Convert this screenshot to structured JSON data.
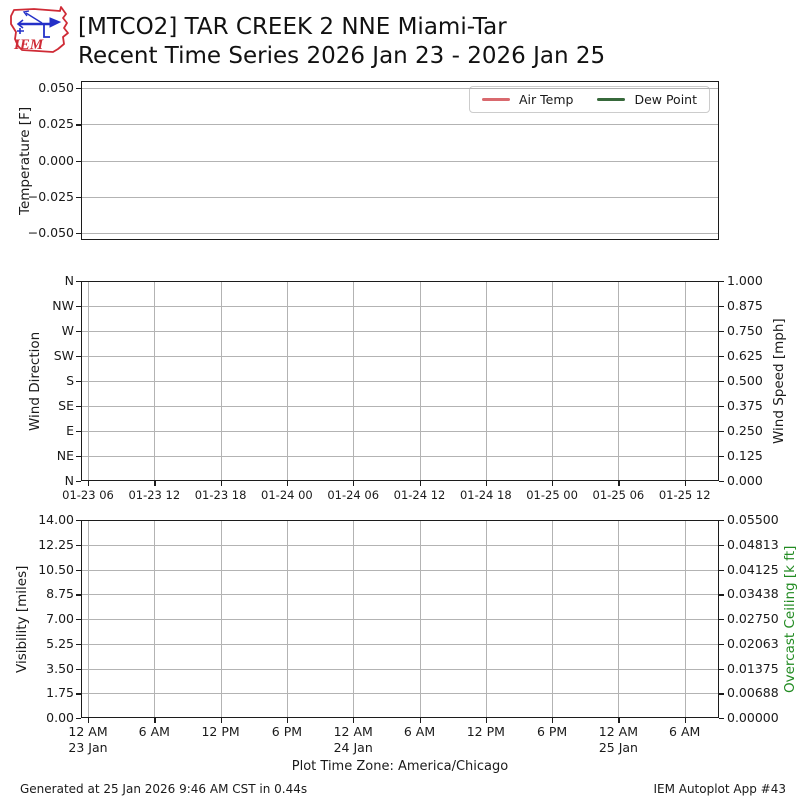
{
  "header": {
    "logo_text": "IEM",
    "title_line1": "[MTCO2] TAR CREEK 2 NNE Miami-Tar",
    "title_line2": "Recent Time Series 2026 Jan 23 - 2026 Jan 25"
  },
  "legend": {
    "items": [
      {
        "label": "Air Temp",
        "color": "#d9696e"
      },
      {
        "label": "Dew Point",
        "color": "#37693b"
      }
    ]
  },
  "footer": {
    "timezone_note": "Plot Time Zone: America/Chicago",
    "generated": "Generated at 25 Jan 2026 9:46 AM CST in 0.44s",
    "app": "IEM Autoplot App #43"
  },
  "chart_data": [
    {
      "type": "line",
      "title": "",
      "ylabel": "Temperature [F]",
      "ylim": [
        -0.055,
        0.055
      ],
      "yticks": [
        "0.050",
        "0.025",
        "0.000",
        "−0.025",
        "−0.050"
      ],
      "grid": "horizontal",
      "legend_position": "upper right",
      "series": [
        {
          "name": "Air Temp",
          "color": "#d9696e",
          "x": [],
          "values": []
        },
        {
          "name": "Dew Point",
          "color": "#37693b",
          "x": [],
          "values": []
        }
      ]
    },
    {
      "type": "line",
      "ylabel": "Wind Direction",
      "yticks": [
        "N",
        "NW",
        "W",
        "SW",
        "S",
        "SE",
        "E",
        "NE",
        "N"
      ],
      "y2label": "Wind Speed [mph]",
      "y2lim": [
        0.0,
        1.0
      ],
      "y2ticks": [
        "1.000",
        "0.875",
        "0.750",
        "0.625",
        "0.500",
        "0.375",
        "0.250",
        "0.125",
        "0.000"
      ],
      "xticks": [
        "01-23 06",
        "01-23 12",
        "01-23 18",
        "01-24 00",
        "01-24 06",
        "01-24 12",
        "01-24 18",
        "01-25 00",
        "01-25 06",
        "01-25 12"
      ],
      "grid": "both",
      "series": []
    },
    {
      "type": "line",
      "ylabel": "Visibility [miles]",
      "ylim": [
        0,
        14
      ],
      "yticks": [
        "14.00",
        "12.25",
        "10.50",
        "8.75",
        "7.00",
        "5.25",
        "3.50",
        "1.75",
        "0.00"
      ],
      "y2label": "Overcast Ceiling [k ft]",
      "y2label_color": "#228b22",
      "y2lim": [
        0,
        0.055
      ],
      "y2ticks": [
        "0.05500",
        "0.04813",
        "0.04125",
        "0.03438",
        "0.02750",
        "0.02063",
        "0.01375",
        "0.00688",
        "0.00000"
      ],
      "xticks": [
        {
          "label": "12 AM",
          "sublabel": "23 Jan"
        },
        {
          "label": "6 AM"
        },
        {
          "label": "12 PM"
        },
        {
          "label": "6 PM"
        },
        {
          "label": "12 AM",
          "sublabel": "24 Jan"
        },
        {
          "label": "6 AM"
        },
        {
          "label": "12 PM"
        },
        {
          "label": "6 PM"
        },
        {
          "label": "12 AM",
          "sublabel": "25 Jan"
        },
        {
          "label": "6 AM"
        }
      ],
      "grid": "both",
      "series": []
    }
  ]
}
